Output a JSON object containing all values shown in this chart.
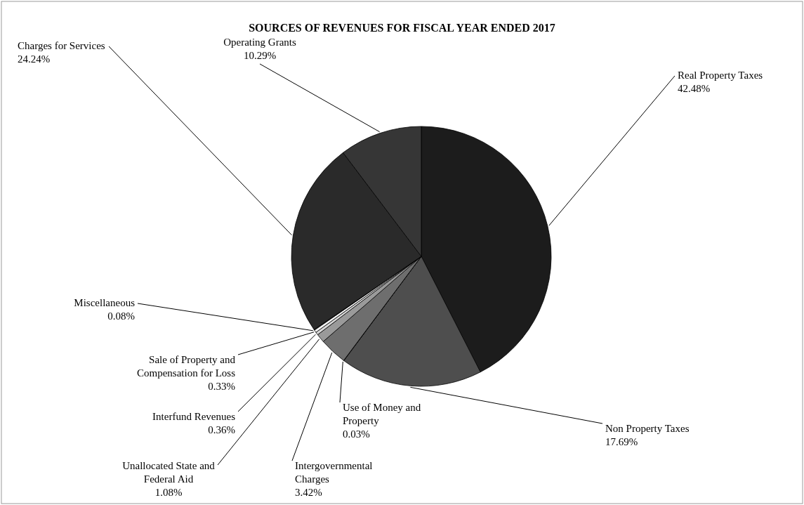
{
  "chart_data": {
    "type": "pie",
    "title": "SOURCES OF REVENUES FOR FISCAL YEAR ENDED 2017",
    "categories": [
      "Real Property Taxes",
      "Non Property Taxes",
      "Use of Money and Property",
      "Intergovernmental Charges",
      "Unallocated State and Federal Aid",
      "Interfund Revenues",
      "Sale of Property and Compensation for Loss",
      "Miscellaneous",
      "Charges for Services",
      "Operating Grants"
    ],
    "values": [
      42.48,
      17.69,
      0.03,
      3.42,
      1.08,
      0.36,
      0.33,
      0.08,
      24.24,
      10.29
    ],
    "value_labels": [
      "42.48%",
      "17.69%",
      "0.03%",
      "3.42%",
      "1.08%",
      "0.36%",
      "0.33%",
      "0.08%",
      "24.24%",
      "10.29%"
    ],
    "colors": [
      "#1c1c1c",
      "#4e4e4e",
      "#3a3a3a",
      "#6e6e6e",
      "#9a9a9a",
      "#d8d8d8",
      "#f4f4f4",
      "#5a5a5a",
      "#2a2a2a",
      "#363636"
    ]
  }
}
